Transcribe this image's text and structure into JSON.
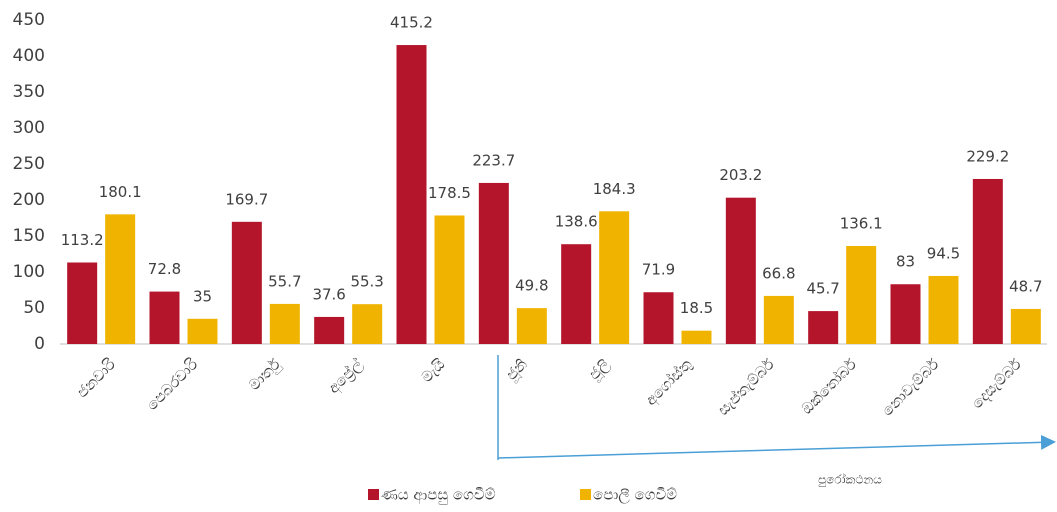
{
  "chart_data": {
    "type": "bar",
    "categories": [
      "ජනවාරි",
      "පෙබරවාරි",
      "මාර්තු",
      "අප්‍රේල්",
      "මැයි",
      "ජූනි",
      "ජූලි",
      "අගෝස්තු",
      "සැප්තැම්බර්",
      "ඔක්තෝබර්",
      "නොවැම්බර්",
      "දෙසැම්බර්"
    ],
    "series": [
      {
        "name": "ණය ආපසු ගෙවීම්",
        "color": "#b5152b",
        "values": [
          113.2,
          72.8,
          169.7,
          37.6,
          415.2,
          223.7,
          138.6,
          71.9,
          203.2,
          45.7,
          83,
          229.2
        ]
      },
      {
        "name": "පොලී ගෙවීම්",
        "color": "#f0b400",
        "values": [
          180.1,
          35,
          55.7,
          55.3,
          178.5,
          49.8,
          184.3,
          18.5,
          66.8,
          136.1,
          94.5,
          48.7
        ]
      }
    ],
    "ylim": [
      0,
      450
    ],
    "yticks": [
      0,
      50,
      100,
      150,
      200,
      250,
      300,
      350,
      400,
      450
    ],
    "grid": false,
    "legend": "bottom",
    "annotation": "පුරෝකථනය"
  }
}
